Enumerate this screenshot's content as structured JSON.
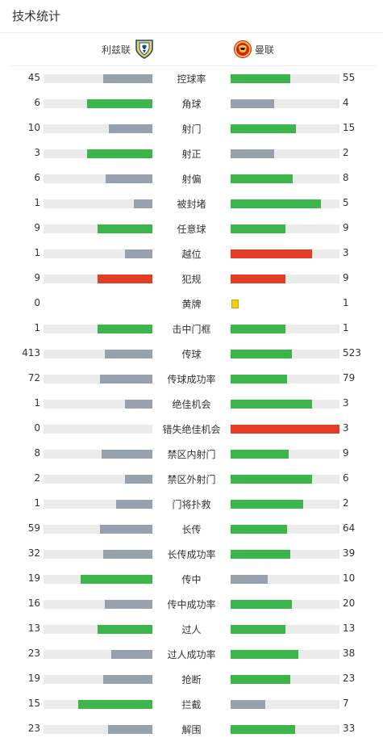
{
  "header": {
    "title": "技术统计"
  },
  "teams": {
    "home": {
      "name": "利兹联",
      "logo_icon": "leeds-united-crest-icon"
    },
    "away": {
      "name": "曼联",
      "logo_icon": "manchester-united-crest-icon"
    }
  },
  "colors": {
    "win": "#3cb64a",
    "lose": "#97a0ad",
    "foul": "#e33e25",
    "track": "#ebebeb",
    "yellow_card": "#f6cc15"
  },
  "stats": [
    {
      "label": "控球率",
      "home": "45",
      "away": "55",
      "home_fill": 0.45,
      "away_fill": 0.55,
      "home_color": "lose",
      "away_color": "win"
    },
    {
      "label": "角球",
      "home": "6",
      "away": "4",
      "home_fill": 0.6,
      "away_fill": 0.4,
      "home_color": "win",
      "away_color": "lose"
    },
    {
      "label": "射门",
      "home": "10",
      "away": "15",
      "home_fill": 0.4,
      "away_fill": 0.6,
      "home_color": "lose",
      "away_color": "win"
    },
    {
      "label": "射正",
      "home": "3",
      "away": "2",
      "home_fill": 0.6,
      "away_fill": 0.4,
      "home_color": "win",
      "away_color": "lose"
    },
    {
      "label": "射偏",
      "home": "6",
      "away": "8",
      "home_fill": 0.43,
      "away_fill": 0.57,
      "home_color": "lose",
      "away_color": "win"
    },
    {
      "label": "被封堵",
      "home": "1",
      "away": "5",
      "home_fill": 0.17,
      "away_fill": 0.83,
      "home_color": "lose",
      "away_color": "win"
    },
    {
      "label": "任意球",
      "home": "9",
      "away": "9",
      "home_fill": 0.5,
      "away_fill": 0.5,
      "home_color": "win",
      "away_color": "win"
    },
    {
      "label": "越位",
      "home": "1",
      "away": "3",
      "home_fill": 0.25,
      "away_fill": 0.75,
      "home_color": "lose",
      "away_color": "foul"
    },
    {
      "label": "犯规",
      "home": "9",
      "away": "9",
      "home_fill": 0.5,
      "away_fill": 0.5,
      "home_color": "foul",
      "away_color": "foul"
    },
    {
      "label": "黄牌",
      "home": "0",
      "away": "1",
      "home_fill": 0,
      "away_fill": 0,
      "home_color": "none",
      "away_color": "none",
      "away_card": true
    },
    {
      "label": "击中门框",
      "home": "1",
      "away": "1",
      "home_fill": 0.5,
      "away_fill": 0.5,
      "home_color": "win",
      "away_color": "win"
    },
    {
      "label": "传球",
      "home": "413",
      "away": "523",
      "home_fill": 0.44,
      "away_fill": 0.56,
      "home_color": "lose",
      "away_color": "win"
    },
    {
      "label": "传球成功率",
      "home": "72",
      "away": "79",
      "home_fill": 0.48,
      "away_fill": 0.52,
      "home_color": "lose",
      "away_color": "win"
    },
    {
      "label": "绝佳机会",
      "home": "1",
      "away": "3",
      "home_fill": 0.25,
      "away_fill": 0.75,
      "home_color": "lose",
      "away_color": "win"
    },
    {
      "label": "错失绝佳机会",
      "home": "0",
      "away": "3",
      "home_fill": 0,
      "away_fill": 1.0,
      "home_color": "none",
      "away_color": "foul"
    },
    {
      "label": "禁区内射门",
      "home": "8",
      "away": "9",
      "home_fill": 0.47,
      "away_fill": 0.53,
      "home_color": "lose",
      "away_color": "win"
    },
    {
      "label": "禁区外射门",
      "home": "2",
      "away": "6",
      "home_fill": 0.25,
      "away_fill": 0.75,
      "home_color": "lose",
      "away_color": "win"
    },
    {
      "label": "门将扑救",
      "home": "1",
      "away": "2",
      "home_fill": 0.33,
      "away_fill": 0.67,
      "home_color": "lose",
      "away_color": "win"
    },
    {
      "label": "长传",
      "home": "59",
      "away": "64",
      "home_fill": 0.48,
      "away_fill": 0.52,
      "home_color": "lose",
      "away_color": "win"
    },
    {
      "label": "长传成功率",
      "home": "32",
      "away": "39",
      "home_fill": 0.45,
      "away_fill": 0.55,
      "home_color": "lose",
      "away_color": "win"
    },
    {
      "label": "传中",
      "home": "19",
      "away": "10",
      "home_fill": 0.66,
      "away_fill": 0.34,
      "home_color": "win",
      "away_color": "lose"
    },
    {
      "label": "传中成功率",
      "home": "16",
      "away": "20",
      "home_fill": 0.44,
      "away_fill": 0.56,
      "home_color": "lose",
      "away_color": "win"
    },
    {
      "label": "过人",
      "home": "13",
      "away": "13",
      "home_fill": 0.5,
      "away_fill": 0.5,
      "home_color": "win",
      "away_color": "win"
    },
    {
      "label": "过人成功率",
      "home": "23",
      "away": "38",
      "home_fill": 0.38,
      "away_fill": 0.62,
      "home_color": "lose",
      "away_color": "win"
    },
    {
      "label": "抢断",
      "home": "19",
      "away": "23",
      "home_fill": 0.45,
      "away_fill": 0.55,
      "home_color": "lose",
      "away_color": "win"
    },
    {
      "label": "拦截",
      "home": "15",
      "away": "7",
      "home_fill": 0.68,
      "away_fill": 0.32,
      "home_color": "win",
      "away_color": "lose"
    },
    {
      "label": "解围",
      "home": "23",
      "away": "33",
      "home_fill": 0.41,
      "away_fill": 0.59,
      "home_color": "lose",
      "away_color": "win"
    }
  ]
}
